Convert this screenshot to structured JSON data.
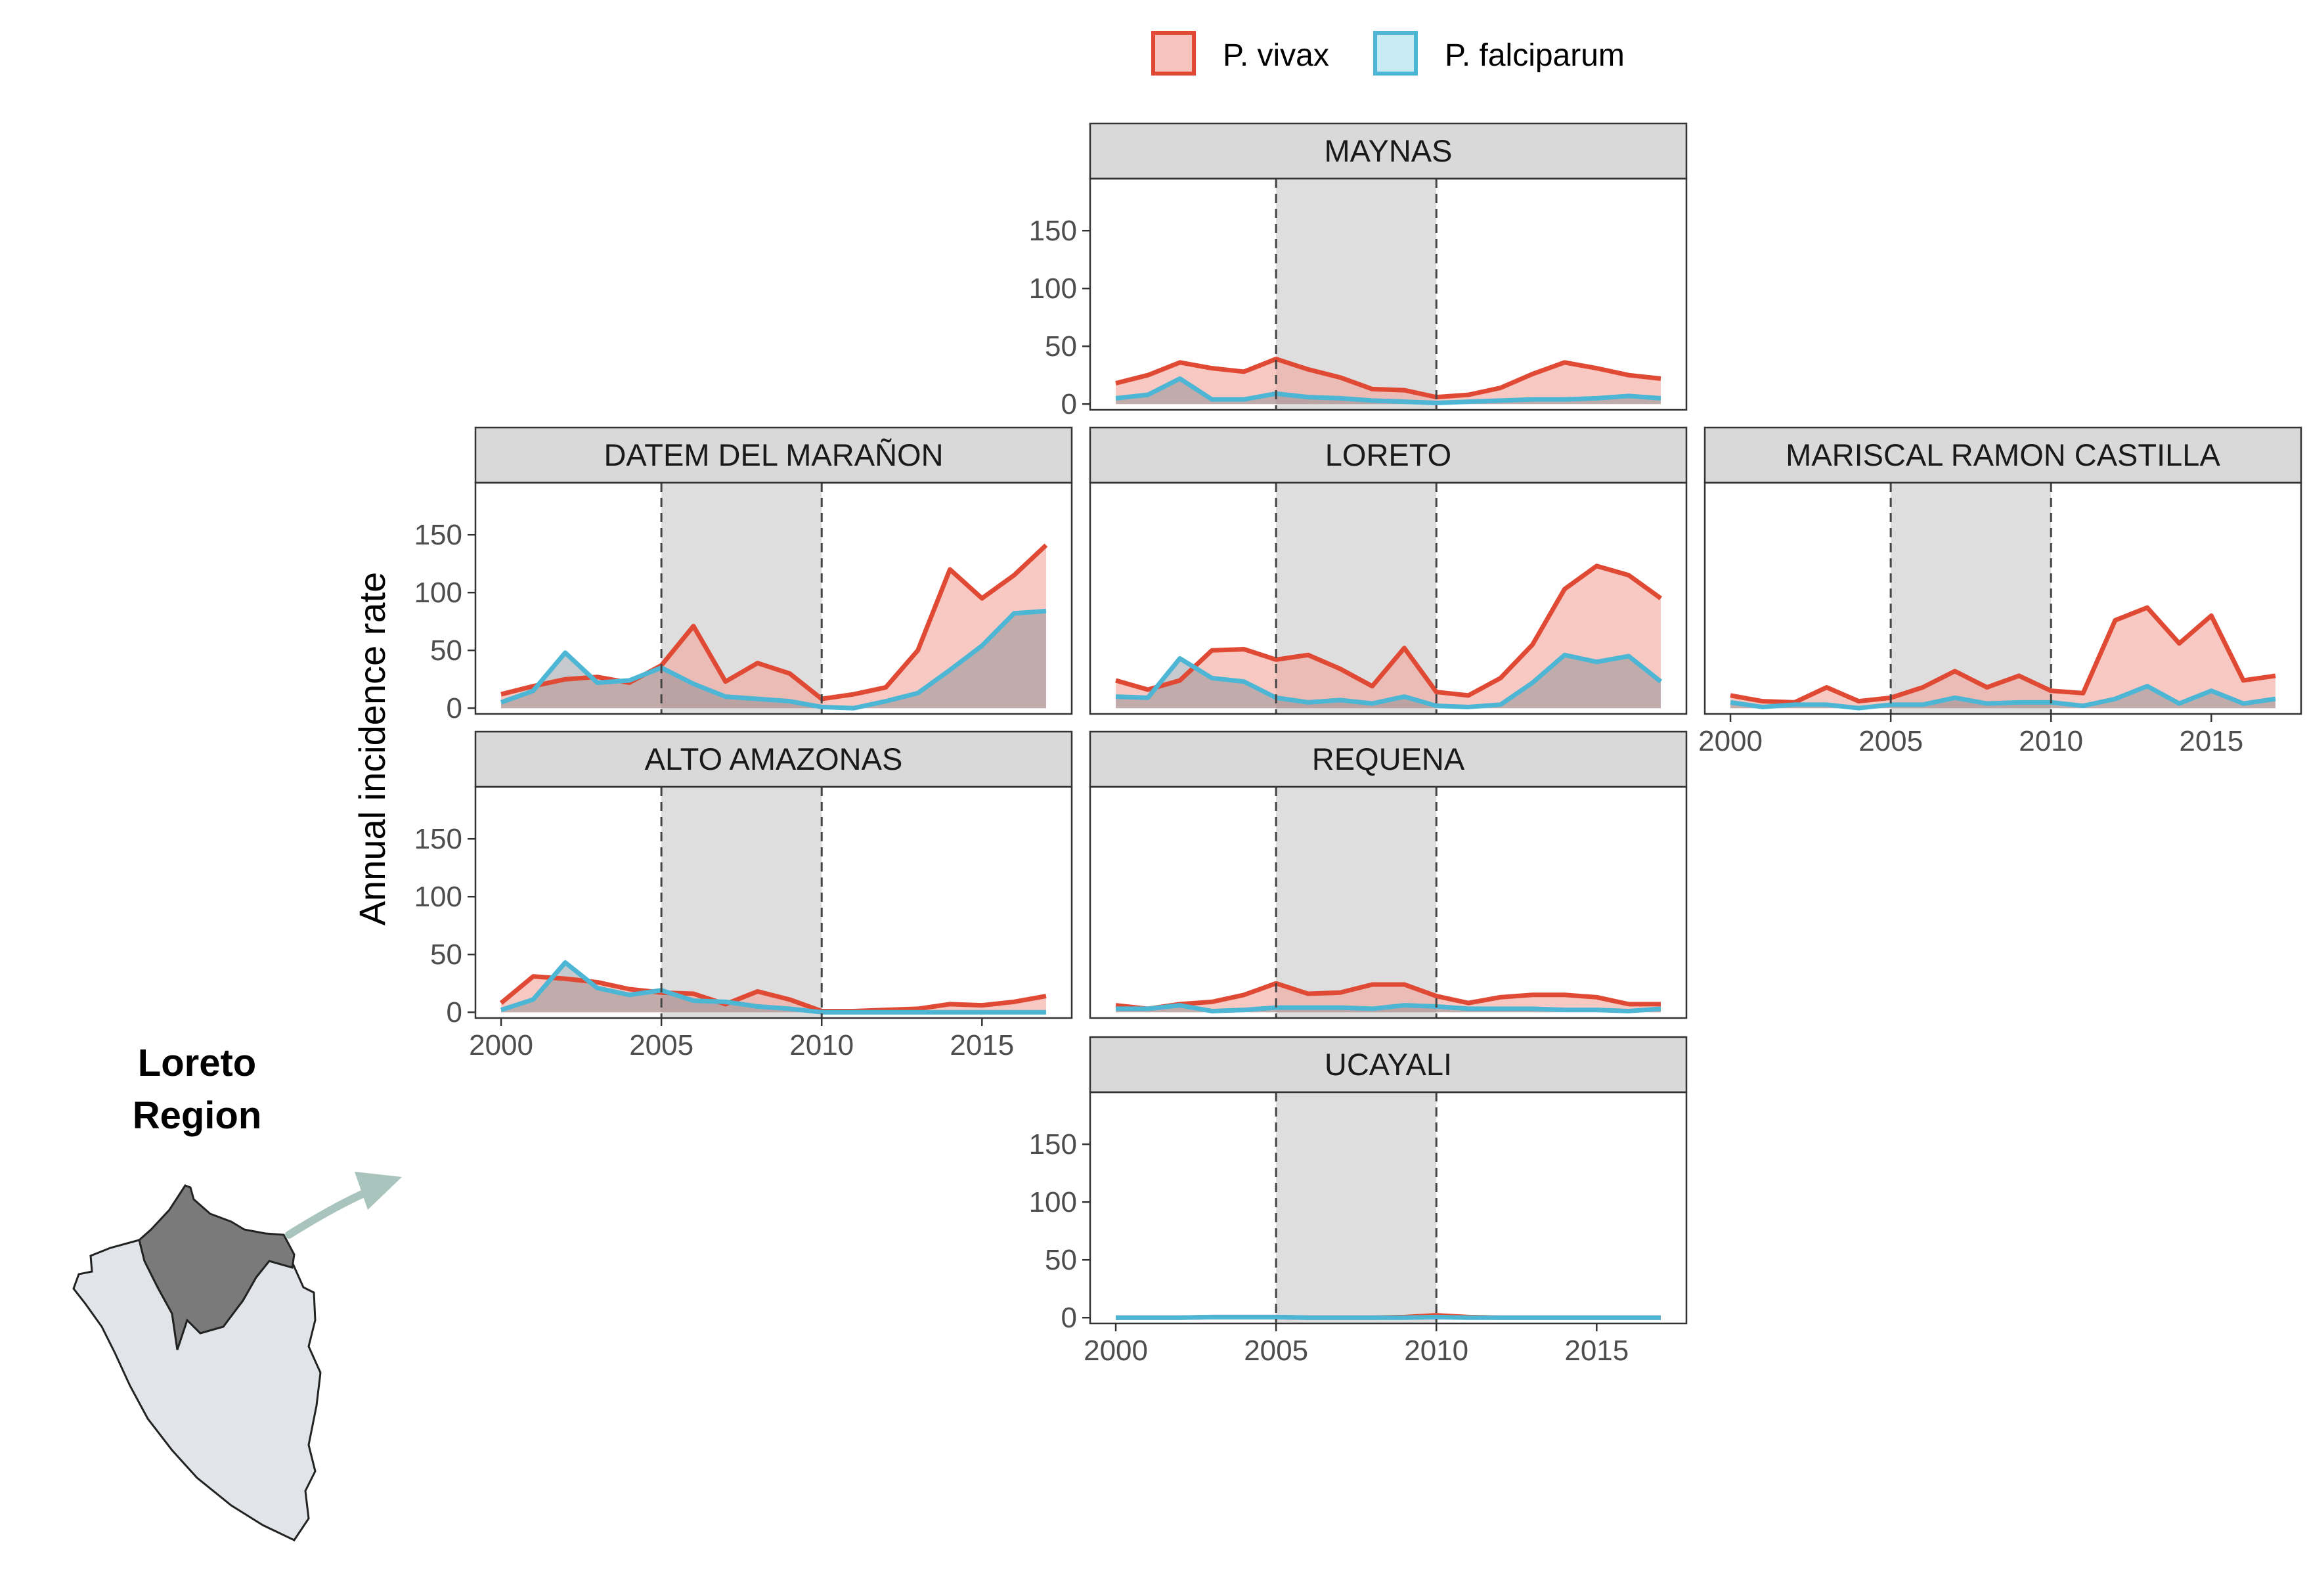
{
  "legend": {
    "items": [
      {
        "label": "P. vivax",
        "line_color": "#e04a35",
        "fill_color": "#f6c3bd"
      },
      {
        "label": "P. falciparum",
        "line_color": "#4cb6d4",
        "fill_color": "#c8eaf2"
      }
    ]
  },
  "y_axis_title": "Annual incidence rate",
  "region_label": {
    "line1": "Loreto",
    "line2": "Region"
  },
  "map": {
    "country_color": "#e1e4e8",
    "region_color": "#7a7a7a",
    "arrow_color": "#a8c4bc"
  },
  "chart_data": {
    "type": "area",
    "facet_layout": "grid",
    "x": [
      2000,
      2001,
      2002,
      2003,
      2004,
      2005,
      2006,
      2007,
      2008,
      2009,
      2010,
      2011,
      2012,
      2013,
      2014,
      2015,
      2016,
      2017
    ],
    "xlim": [
      1999.2,
      2017.8
    ],
    "ylim": [
      -5,
      195
    ],
    "y_ticks": [
      0,
      50,
      100,
      150
    ],
    "x_ticks": [
      2000,
      2005,
      2010,
      2015
    ],
    "shaded_period": [
      2005,
      2010
    ],
    "series_names": [
      "P. vivax",
      "P. falciparum"
    ],
    "panels": [
      {
        "name": "MAYNAS",
        "row": 0,
        "col": 1,
        "show_y": true,
        "show_x": false,
        "vivax": [
          18,
          25,
          36,
          31,
          28,
          39,
          30,
          23,
          13,
          12,
          6,
          8,
          14,
          26,
          36,
          31,
          25,
          22
        ],
        "falciparum": [
          5,
          8,
          22,
          4,
          4,
          9,
          6,
          5,
          3,
          2,
          1,
          2,
          3,
          4,
          4,
          5,
          7,
          5
        ]
      },
      {
        "name": "DATEM DEL MARAÑON",
        "row": 1,
        "col": 0,
        "show_y": true,
        "show_x": false,
        "vivax": [
          12,
          19,
          25,
          27,
          22,
          37,
          71,
          23,
          39,
          30,
          8,
          12,
          18,
          50,
          120,
          95,
          115,
          141
        ],
        "falciparum": [
          5,
          15,
          48,
          22,
          24,
          35,
          21,
          10,
          8,
          6,
          1,
          0,
          6,
          13,
          33,
          54,
          82,
          84
        ]
      },
      {
        "name": "LORETO",
        "row": 1,
        "col": 1,
        "show_y": false,
        "show_x": false,
        "vivax": [
          24,
          16,
          24,
          50,
          51,
          42,
          46,
          34,
          19,
          52,
          14,
          11,
          26,
          55,
          103,
          123,
          115,
          95
        ],
        "falciparum": [
          10,
          9,
          43,
          26,
          23,
          9,
          5,
          7,
          4,
          10,
          2,
          1,
          3,
          22,
          46,
          40,
          45,
          23
        ]
      },
      {
        "name": "MARISCAL RAMON CASTILLA",
        "row": 1,
        "col": 2,
        "show_y": false,
        "show_x": true,
        "vivax": [
          11,
          6,
          5,
          18,
          6,
          9,
          18,
          32,
          18,
          28,
          15,
          13,
          76,
          87,
          56,
          80,
          24,
          28
        ],
        "falciparum": [
          5,
          1,
          3,
          3,
          0,
          3,
          3,
          9,
          4,
          5,
          5,
          2,
          8,
          19,
          4,
          15,
          4,
          8
        ]
      },
      {
        "name": "ALTO AMAZONAS",
        "row": 2,
        "col": 0,
        "show_y": true,
        "show_x": true,
        "vivax": [
          8,
          31,
          29,
          26,
          20,
          17,
          16,
          7,
          18,
          11,
          1,
          1,
          2,
          3,
          7,
          6,
          9,
          14
        ],
        "falciparum": [
          2,
          11,
          43,
          21,
          15,
          19,
          10,
          9,
          5,
          3,
          0,
          0,
          0,
          0,
          0,
          0,
          0,
          0
        ]
      },
      {
        "name": "REQUENA",
        "row": 2,
        "col": 1,
        "show_y": false,
        "show_x": false,
        "vivax": [
          6,
          3,
          7,
          9,
          15,
          25,
          16,
          17,
          24,
          24,
          14,
          8,
          13,
          15,
          15,
          13,
          7,
          7
        ],
        "falciparum": [
          3,
          3,
          6,
          1,
          2,
          4,
          4,
          4,
          3,
          6,
          5,
          3,
          3,
          3,
          2,
          2,
          1,
          3
        ]
      },
      {
        "name": "UCAYALI",
        "row": 3,
        "col": 1,
        "show_y": true,
        "show_x": true,
        "vivax": [
          0,
          0,
          0,
          0.5,
          0.5,
          0.5,
          0,
          0,
          0,
          0.5,
          2,
          0.5,
          0,
          0,
          0,
          0,
          0,
          0
        ],
        "falciparum": [
          0,
          0,
          0,
          0.5,
          0.5,
          0.5,
          0,
          0,
          0,
          0,
          0.5,
          0,
          0,
          0,
          0,
          0,
          0,
          0
        ]
      }
    ]
  }
}
